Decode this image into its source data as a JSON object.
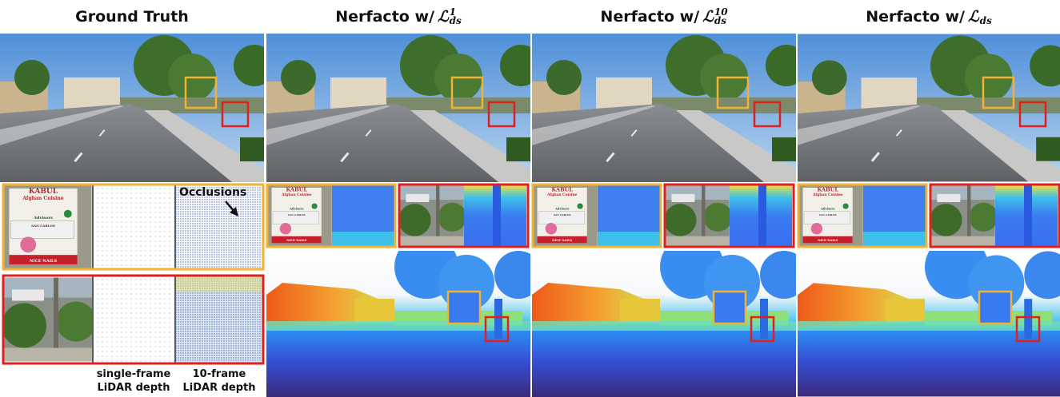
{
  "columns": [
    {
      "title": {
        "text": "Ground Truth"
      }
    },
    {
      "title": {
        "prefix": "Nerfacto w/",
        "symbol": "ℒ",
        "sub": "ds",
        "sup": "1"
      }
    },
    {
      "title": {
        "prefix": "Nerfacto w/",
        "symbol": "ℒ",
        "sub": "ds",
        "sup": "10"
      }
    },
    {
      "title": {
        "prefix": "Nerfacto w/",
        "symbol": "ℒ",
        "sub": "ds"
      }
    }
  ],
  "annotation": "Occlusions",
  "lidar_labels": [
    [
      "single-frame",
      "LiDAR depth"
    ],
    [
      "10-frame",
      "LiDAR depth"
    ]
  ],
  "sign_text": [
    "KABUL",
    "Afghan Cuisine",
    "Advisors",
    "SAN CARLOS",
    "NICE NAILS"
  ]
}
